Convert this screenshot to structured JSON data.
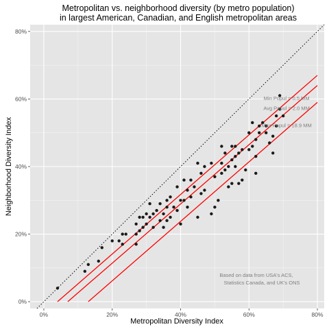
{
  "chart_data": {
    "type": "scatter",
    "title": [
      "Metropolitan vs. neighborhood diversity (by metro population)",
      "in largest American, Canadian, and English metropolitan areas"
    ],
    "xlabel": "Metropolitan Diversity Index",
    "ylabel": "Neighborhood Diversity Index",
    "xlim": [
      -0.04,
      0.82
    ],
    "ylim": [
      -0.02,
      0.82
    ],
    "x_ticks": [
      0,
      0.2,
      0.4,
      0.6,
      0.8
    ],
    "x_tick_labels": [
      "0%",
      "20%",
      "40%",
      "60%",
      "80%"
    ],
    "y_ticks": [
      0,
      0.2,
      0.4,
      0.6,
      0.8
    ],
    "y_tick_labels": [
      "0%",
      "20%",
      "40%",
      "60%",
      "80%"
    ],
    "grid": true,
    "background": "#e5e5e5",
    "grid_color": "#ffffff",
    "point_color": "#1a1a1a",
    "line_color": "#ff0000",
    "points": [
      [
        0.04,
        0.04
      ],
      [
        0.12,
        0.09
      ],
      [
        0.13,
        0.11
      ],
      [
        0.16,
        0.12
      ],
      [
        0.17,
        0.16
      ],
      [
        0.2,
        0.18
      ],
      [
        0.22,
        0.18
      ],
      [
        0.23,
        0.17
      ],
      [
        0.23,
        0.2
      ],
      [
        0.24,
        0.2
      ],
      [
        0.27,
        0.17
      ],
      [
        0.27,
        0.2
      ],
      [
        0.27,
        0.23
      ],
      [
        0.28,
        0.21
      ],
      [
        0.28,
        0.25
      ],
      [
        0.29,
        0.22
      ],
      [
        0.29,
        0.25
      ],
      [
        0.3,
        0.23
      ],
      [
        0.3,
        0.26
      ],
      [
        0.31,
        0.25
      ],
      [
        0.31,
        0.29
      ],
      [
        0.32,
        0.22
      ],
      [
        0.32,
        0.26
      ],
      [
        0.33,
        0.27
      ],
      [
        0.34,
        0.24
      ],
      [
        0.34,
        0.29
      ],
      [
        0.35,
        0.22
      ],
      [
        0.35,
        0.26
      ],
      [
        0.36,
        0.24
      ],
      [
        0.36,
        0.28
      ],
      [
        0.36,
        0.3
      ],
      [
        0.37,
        0.25
      ],
      [
        0.37,
        0.31
      ],
      [
        0.38,
        0.28
      ],
      [
        0.39,
        0.27
      ],
      [
        0.39,
        0.34
      ],
      [
        0.4,
        0.23
      ],
      [
        0.4,
        0.3
      ],
      [
        0.41,
        0.3
      ],
      [
        0.41,
        0.36
      ],
      [
        0.42,
        0.28
      ],
      [
        0.42,
        0.33
      ],
      [
        0.43,
        0.31
      ],
      [
        0.43,
        0.36
      ],
      [
        0.44,
        0.34
      ],
      [
        0.45,
        0.25
      ],
      [
        0.45,
        0.41
      ],
      [
        0.46,
        0.32
      ],
      [
        0.46,
        0.38
      ],
      [
        0.47,
        0.33
      ],
      [
        0.47,
        0.4
      ],
      [
        0.49,
        0.26
      ],
      [
        0.49,
        0.41
      ],
      [
        0.5,
        0.28
      ],
      [
        0.5,
        0.37
      ],
      [
        0.51,
        0.3
      ],
      [
        0.52,
        0.38
      ],
      [
        0.52,
        0.41
      ],
      [
        0.52,
        0.46
      ],
      [
        0.53,
        0.39
      ],
      [
        0.53,
        0.44
      ],
      [
        0.54,
        0.34
      ],
      [
        0.54,
        0.4
      ],
      [
        0.55,
        0.35
      ],
      [
        0.55,
        0.42
      ],
      [
        0.55,
        0.46
      ],
      [
        0.56,
        0.4
      ],
      [
        0.56,
        0.43
      ],
      [
        0.56,
        0.46
      ],
      [
        0.57,
        0.35
      ],
      [
        0.57,
        0.44
      ],
      [
        0.58,
        0.36
      ],
      [
        0.58,
        0.45
      ],
      [
        0.59,
        0.39
      ],
      [
        0.6,
        0.45
      ],
      [
        0.6,
        0.5
      ],
      [
        0.61,
        0.46
      ],
      [
        0.61,
        0.53
      ],
      [
        0.62,
        0.38
      ],
      [
        0.62,
        0.43
      ],
      [
        0.62,
        0.48
      ],
      [
        0.63,
        0.5
      ],
      [
        0.63,
        0.52
      ],
      [
        0.64,
        0.53
      ],
      [
        0.65,
        0.5
      ],
      [
        0.65,
        0.52
      ],
      [
        0.66,
        0.47
      ],
      [
        0.67,
        0.44
      ],
      [
        0.67,
        0.49
      ],
      [
        0.68,
        0.52
      ],
      [
        0.68,
        0.55
      ],
      [
        0.69,
        0.57
      ],
      [
        0.69,
        0.61
      ],
      [
        0.7,
        0.55
      ]
    ],
    "reference_line": {
      "slope": 1,
      "intercept": 0,
      "style": "dotted"
    },
    "series": [
      {
        "name": "Min Popul = 0.5 MM",
        "x": [
          0.04,
          0.8
        ],
        "y": [
          0.0,
          0.67
        ]
      },
      {
        "name": "Avg Popul = 2.0 MM",
        "x": [
          0.07,
          0.8
        ],
        "y": [
          0.0,
          0.64
        ]
      },
      {
        "name": "Max Popul = 18.9 MM",
        "x": [
          0.13,
          0.8
        ],
        "y": [
          0.0,
          0.59
        ]
      }
    ],
    "note": [
      "Based on data from USA's ACS,",
      "Statistics Canada, and UK's ONS"
    ]
  }
}
